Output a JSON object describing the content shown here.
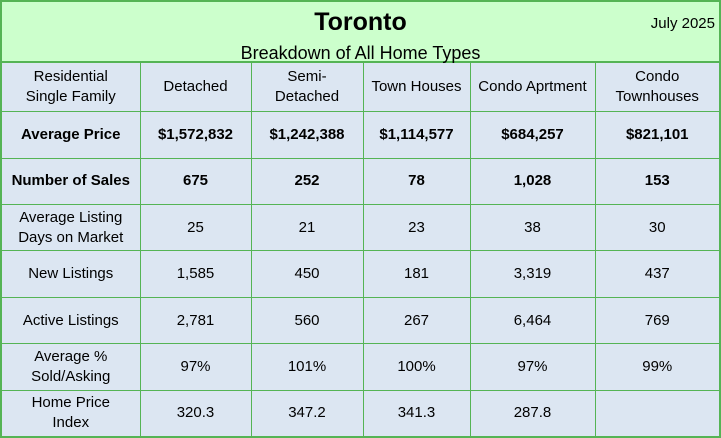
{
  "header": {
    "title": "Toronto",
    "date": "July 2025",
    "subtitle": "Breakdown of All Home Types"
  },
  "table": {
    "columns": [
      "Residential Single Family",
      "Detached",
      "Semi-Detached",
      "Town Houses",
      "Condo Aprtment",
      "Condo Townhouses"
    ],
    "rows": [
      {
        "label": "Average Price",
        "bold": true,
        "values": [
          "$1,572,832",
          "$1,242,388",
          "$1,114,577",
          "$684,257",
          "$821,101"
        ]
      },
      {
        "label": "Number of Sales",
        "bold": true,
        "values": [
          "675",
          "252",
          "78",
          "1,028",
          "153"
        ]
      },
      {
        "label": "Average Listing Days on Market",
        "bold": false,
        "values": [
          "25",
          "21",
          "23",
          "38",
          "30"
        ]
      },
      {
        "label": "New Listings",
        "bold": false,
        "values": [
          "1,585",
          "450",
          "181",
          "3,319",
          "437"
        ]
      },
      {
        "label": "Active Listings",
        "bold": false,
        "values": [
          "2,781",
          "560",
          "267",
          "6,464",
          "769"
        ]
      },
      {
        "label": "Average % Sold/Asking",
        "bold": false,
        "values": [
          "97%",
          "101%",
          "100%",
          "97%",
          "99%"
        ]
      },
      {
        "label": "Home Price Index",
        "bold": false,
        "values": [
          "320.3",
          "347.2",
          "341.3",
          "287.8",
          ""
        ]
      }
    ]
  }
}
